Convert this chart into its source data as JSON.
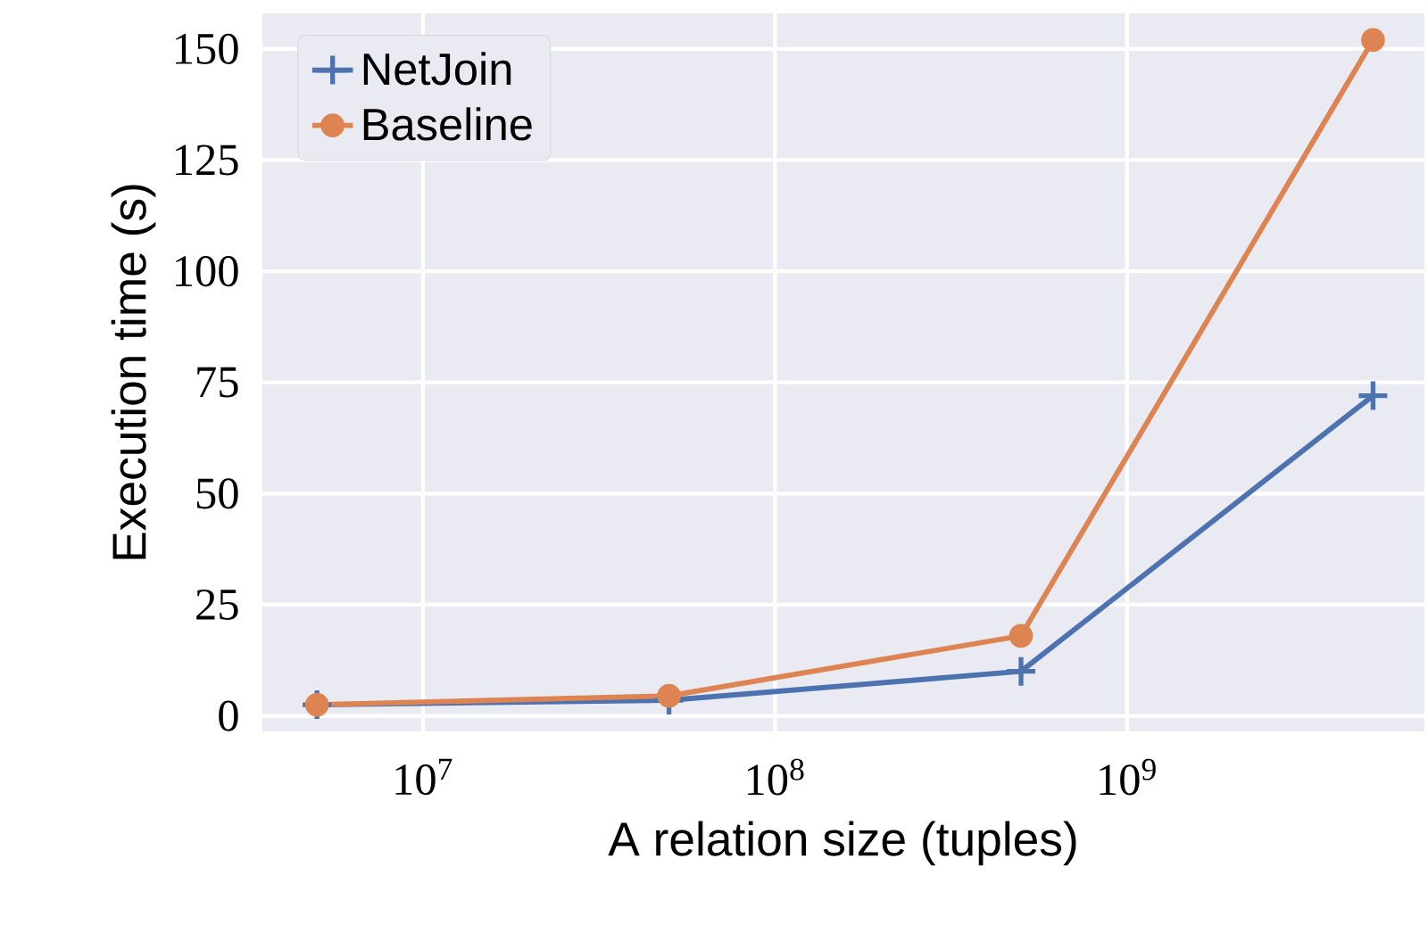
{
  "chart_data": {
    "type": "line",
    "xlabel": "A relation size (tuples)",
    "ylabel": "Execution time (s)",
    "x": [
      5000000,
      50000000,
      500000000,
      5000000000
    ],
    "series": [
      {
        "name": "NetJoin",
        "color": "#4c72b0",
        "marker": "cross",
        "values": [
          2.5,
          3.5,
          10,
          72
        ]
      },
      {
        "name": "Baseline",
        "color": "#dd8452",
        "marker": "circle",
        "values": [
          2.5,
          4.5,
          18,
          152
        ]
      }
    ],
    "log": "x",
    "xlim": [
      3500000,
      7000000000
    ],
    "ylim": [
      -3.5,
      158
    ],
    "xticks": [
      {
        "value": 10000000,
        "label": "10$^{7}$"
      },
      {
        "value": 100000000,
        "label": "10$^{8}$"
      },
      {
        "value": 1000000000,
        "label": "10$^{9}$"
      }
    ],
    "yticks": [
      0,
      25,
      50,
      75,
      100,
      125,
      150
    ],
    "grid": true,
    "legend": "top left",
    "line_style": "solid"
  }
}
